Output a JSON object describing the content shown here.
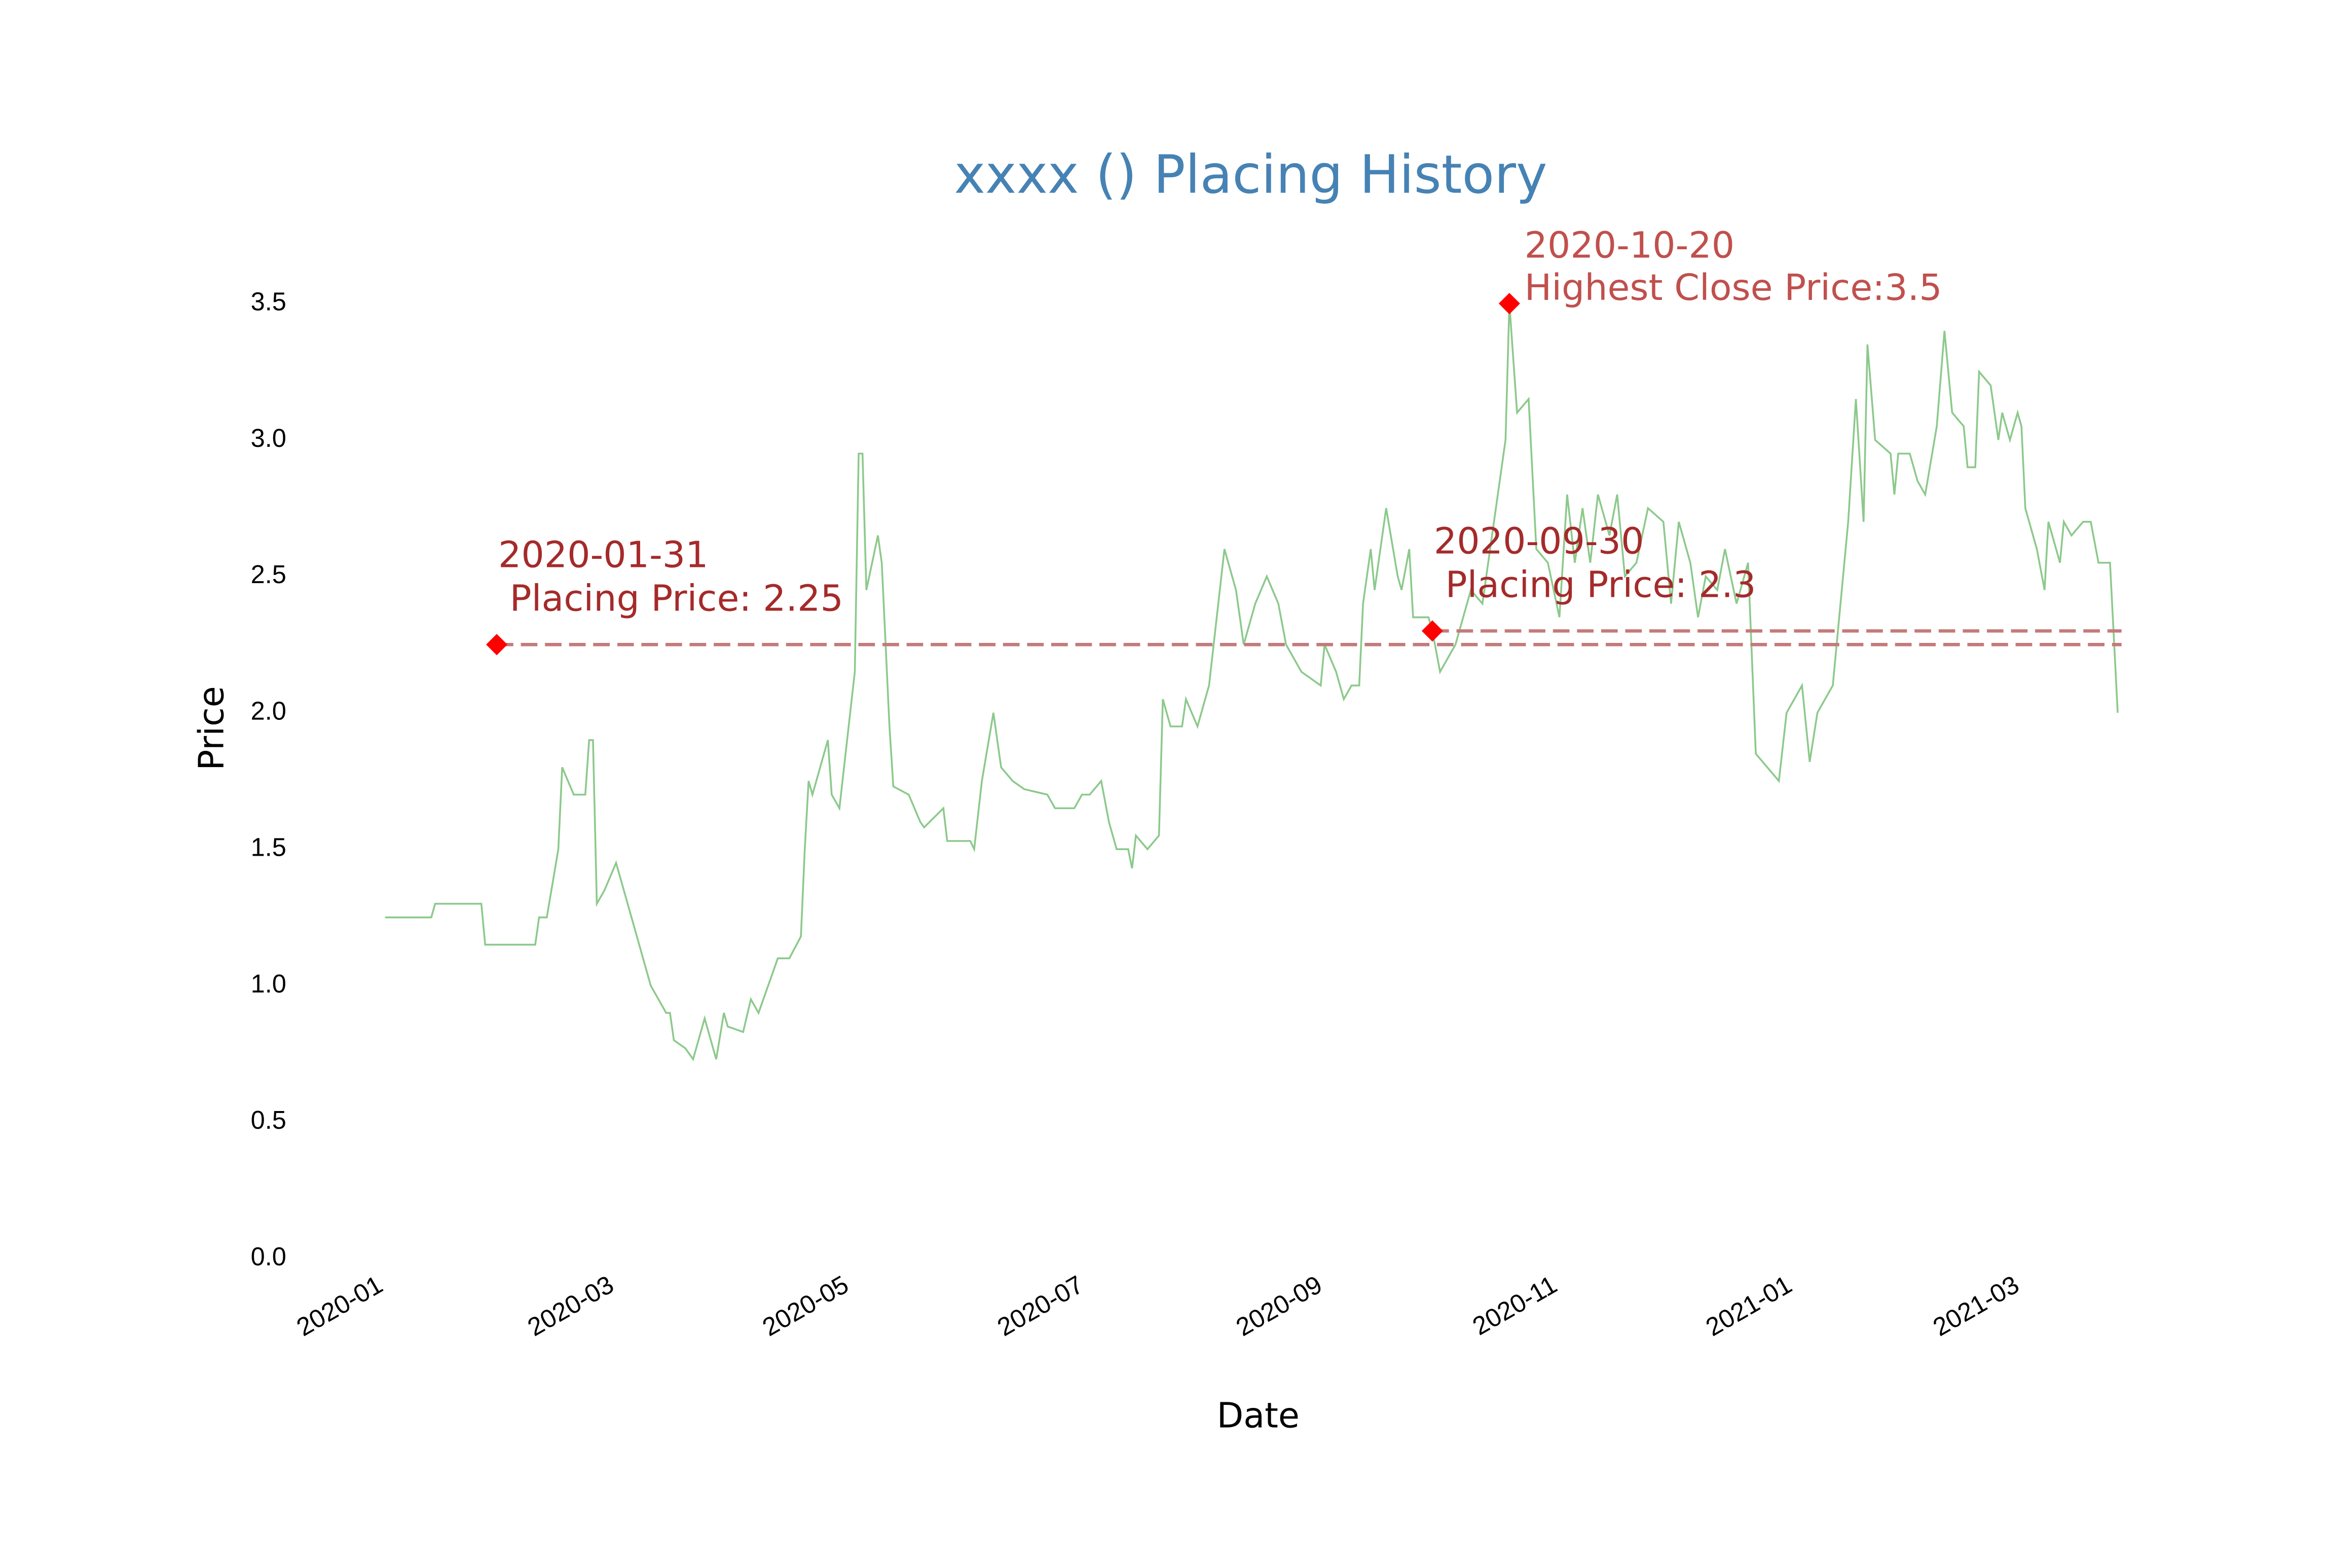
{
  "chart_data": {
    "type": "line",
    "title": "xxxx () Placing History",
    "x_label": "Date",
    "y_label": "Price",
    "x": [
      "2020-01-02",
      "2020-01-14",
      "2020-01-15",
      "2020-01-27",
      "2020-01-28",
      "2020-02-10",
      "2020-02-11",
      "2020-02-13",
      "2020-02-16",
      "2020-02-17",
      "2020-02-20",
      "2020-02-23",
      "2020-02-24",
      "2020-02-25",
      "2020-02-26",
      "2020-02-28",
      "2020-03-02",
      "2020-03-05",
      "2020-03-08",
      "2020-03-11",
      "2020-03-15",
      "2020-03-16",
      "2020-03-17",
      "2020-03-20",
      "2020-03-22",
      "2020-03-25",
      "2020-03-28",
      "2020-03-30",
      "2020-03-31",
      "2020-04-04",
      "2020-04-06",
      "2020-04-08",
      "2020-04-13",
      "2020-04-16",
      "2020-04-19",
      "2020-04-20",
      "2020-04-21",
      "2020-04-22",
      "2020-04-26",
      "2020-04-27",
      "2020-04-29",
      "2020-05-03",
      "2020-05-04",
      "2020-05-05",
      "2020-05-06",
      "2020-05-09",
      "2020-05-10",
      "2020-05-12",
      "2020-05-13",
      "2020-05-17",
      "2020-05-20",
      "2020-05-21",
      "2020-05-26",
      "2020-05-27",
      "2020-06-02",
      "2020-06-03",
      "2020-06-05",
      "2020-06-08",
      "2020-06-10",
      "2020-06-13",
      "2020-06-16",
      "2020-06-22",
      "2020-06-24",
      "2020-06-29",
      "2020-07-01",
      "2020-07-03",
      "2020-07-06",
      "2020-07-08",
      "2020-07-10",
      "2020-07-13",
      "2020-07-14",
      "2020-07-15",
      "2020-07-18",
      "2020-07-21",
      "2020-07-22",
      "2020-07-24",
      "2020-07-27",
      "2020-07-28",
      "2020-07-31",
      "2020-08-03",
      "2020-08-07",
      "2020-08-10",
      "2020-08-12",
      "2020-08-15",
      "2020-08-18",
      "2020-08-21",
      "2020-08-23",
      "2020-08-25",
      "2020-08-27",
      "2020-09-01",
      "2020-09-02",
      "2020-09-05",
      "2020-09-07",
      "2020-09-09",
      "2020-09-11",
      "2020-09-12",
      "2020-09-14",
      "2020-09-15",
      "2020-09-18",
      "2020-09-21",
      "2020-09-22",
      "2020-09-24",
      "2020-09-25",
      "2020-09-29",
      "2020-09-30",
      "2020-10-02",
      "2020-10-06",
      "2020-10-10",
      "2020-10-13",
      "2020-10-19",
      "2020-10-20",
      "2020-10-22",
      "2020-10-25",
      "2020-10-27",
      "2020-10-30",
      "2020-11-02",
      "2020-11-04",
      "2020-11-06",
      "2020-11-08",
      "2020-11-10",
      "2020-11-12",
      "2020-11-15",
      "2020-11-17",
      "2020-11-19",
      "2020-11-22",
      "2020-11-25",
      "2020-11-29",
      "2020-12-01",
      "2020-12-03",
      "2020-12-06",
      "2020-12-08",
      "2020-12-10",
      "2020-12-13",
      "2020-12-15",
      "2020-12-18",
      "2020-12-21",
      "2020-12-23",
      "2020-12-29",
      "2020-12-31",
      "2021-01-04",
      "2021-01-06",
      "2021-01-08",
      "2021-01-12",
      "2021-01-13",
      "2021-01-16",
      "2021-01-18",
      "2021-01-20",
      "2021-01-21",
      "2021-01-23",
      "2021-01-27",
      "2021-01-28",
      "2021-01-29",
      "2021-02-01",
      "2021-02-03",
      "2021-02-05",
      "2021-02-08",
      "2021-02-10",
      "2021-02-12",
      "2021-02-15",
      "2021-02-16",
      "2021-02-18",
      "2021-02-19",
      "2021-02-22",
      "2021-02-24",
      "2021-02-25",
      "2021-02-27",
      "2021-03-01",
      "2021-03-02",
      "2021-03-03",
      "2021-03-06",
      "2021-03-08",
      "2021-03-09",
      "2021-03-12",
      "2021-03-13",
      "2021-03-15",
      "2021-03-18",
      "2021-03-20",
      "2021-03-22",
      "2021-03-25",
      "2021-03-27"
    ],
    "series": [
      {
        "color": "#8cc98c",
        "values": [
          1.25,
          1.25,
          1.3,
          1.3,
          1.15,
          1.15,
          1.25,
          1.25,
          1.5,
          1.8,
          1.7,
          1.7,
          1.9,
          1.9,
          1.3,
          1.35,
          1.45,
          1.3,
          1.15,
          1.0,
          0.9,
          0.9,
          0.8,
          0.77,
          0.73,
          0.88,
          0.73,
          0.9,
          0.85,
          0.83,
          0.95,
          0.9,
          1.1,
          1.1,
          1.18,
          1.5,
          1.75,
          1.7,
          1.9,
          1.7,
          1.65,
          2.15,
          2.95,
          2.95,
          2.45,
          2.65,
          2.55,
          1.95,
          1.73,
          1.7,
          1.6,
          1.58,
          1.65,
          1.53,
          1.53,
          1.5,
          1.75,
          2.0,
          1.8,
          1.75,
          1.72,
          1.7,
          1.65,
          1.65,
          1.7,
          1.7,
          1.75,
          1.6,
          1.5,
          1.5,
          1.43,
          1.55,
          1.5,
          1.55,
          2.05,
          1.95,
          1.95,
          2.05,
          1.95,
          2.1,
          2.6,
          2.45,
          2.25,
          2.4,
          2.5,
          2.4,
          2.25,
          2.2,
          2.15,
          2.1,
          2.25,
          2.15,
          2.05,
          2.1,
          2.1,
          2.4,
          2.6,
          2.45,
          2.75,
          2.5,
          2.45,
          2.6,
          2.35,
          2.35,
          2.3,
          2.15,
          2.25,
          2.45,
          2.4,
          3.0,
          3.5,
          3.1,
          3.15,
          2.6,
          2.55,
          2.35,
          2.8,
          2.55,
          2.75,
          2.55,
          2.8,
          2.65,
          2.8,
          2.5,
          2.55,
          2.75,
          2.7,
          2.4,
          2.7,
          2.55,
          2.35,
          2.5,
          2.45,
          2.6,
          2.4,
          2.55,
          1.85,
          1.75,
          2.0,
          2.1,
          1.82,
          2.0,
          2.1,
          2.25,
          2.7,
          3.15,
          2.7,
          3.35,
          3.0,
          2.95,
          2.8,
          2.95,
          2.95,
          2.85,
          2.8,
          3.05,
          3.4,
          3.1,
          3.05,
          2.9,
          2.9,
          3.25,
          3.2,
          3.0,
          3.1,
          3.0,
          3.1,
          3.05,
          2.75,
          2.6,
          2.45,
          2.7,
          2.55,
          2.7,
          2.65,
          2.7,
          2.7,
          2.55,
          2.55,
          2.0
        ]
      }
    ],
    "annotations": [
      {
        "x": "2020-01-31",
        "y": 2.25,
        "text": " Placing Price: 2.25",
        "color": "#a52a2a",
        "marker_color": "#ff0000",
        "line": true,
        "line_color": "#c47a7a"
      },
      {
        "x": "2020-09-30",
        "y": 2.3,
        "text": " Placing Price: 2.3",
        "color": "#a52a2a",
        "marker_color": "#ff0000",
        "line": true,
        "line_color": "#c47a7a"
      },
      {
        "x": "2020-10-20",
        "y": 3.5,
        "text": "Highest Close Price:3.5",
        "color": "#c0504d",
        "marker_color": "#ff0000",
        "line": false
      }
    ],
    "xlim": [
      "2020-01-01",
      "2021-03-28"
    ],
    "xticks": [
      {
        "value": "2020-01-01",
        "label": "2020-01"
      },
      {
        "value": "2020-03-01",
        "label": "2020-03"
      },
      {
        "value": "2020-05-01",
        "label": "2020-05"
      },
      {
        "value": "2020-07-01",
        "label": "2020-07"
      },
      {
        "value": "2020-09-01",
        "label": "2020-09"
      },
      {
        "value": "2020-11-01",
        "label": "2020-11"
      },
      {
        "value": "2021-01-01",
        "label": "2021-01"
      },
      {
        "value": "2021-03-01",
        "label": "2021-03"
      }
    ],
    "ylim": [
      0,
      3.5
    ],
    "yticks": [
      {
        "value": 0,
        "label": "0.0"
      },
      0.5,
      {
        "value": 1,
        "label": "1.0"
      },
      1.5,
      {
        "value": 2,
        "label": "2.0"
      },
      2.5,
      {
        "value": 3,
        "label": "3.0"
      },
      3.5
    ],
    "title_color": "#4682b4",
    "grid": false
  }
}
